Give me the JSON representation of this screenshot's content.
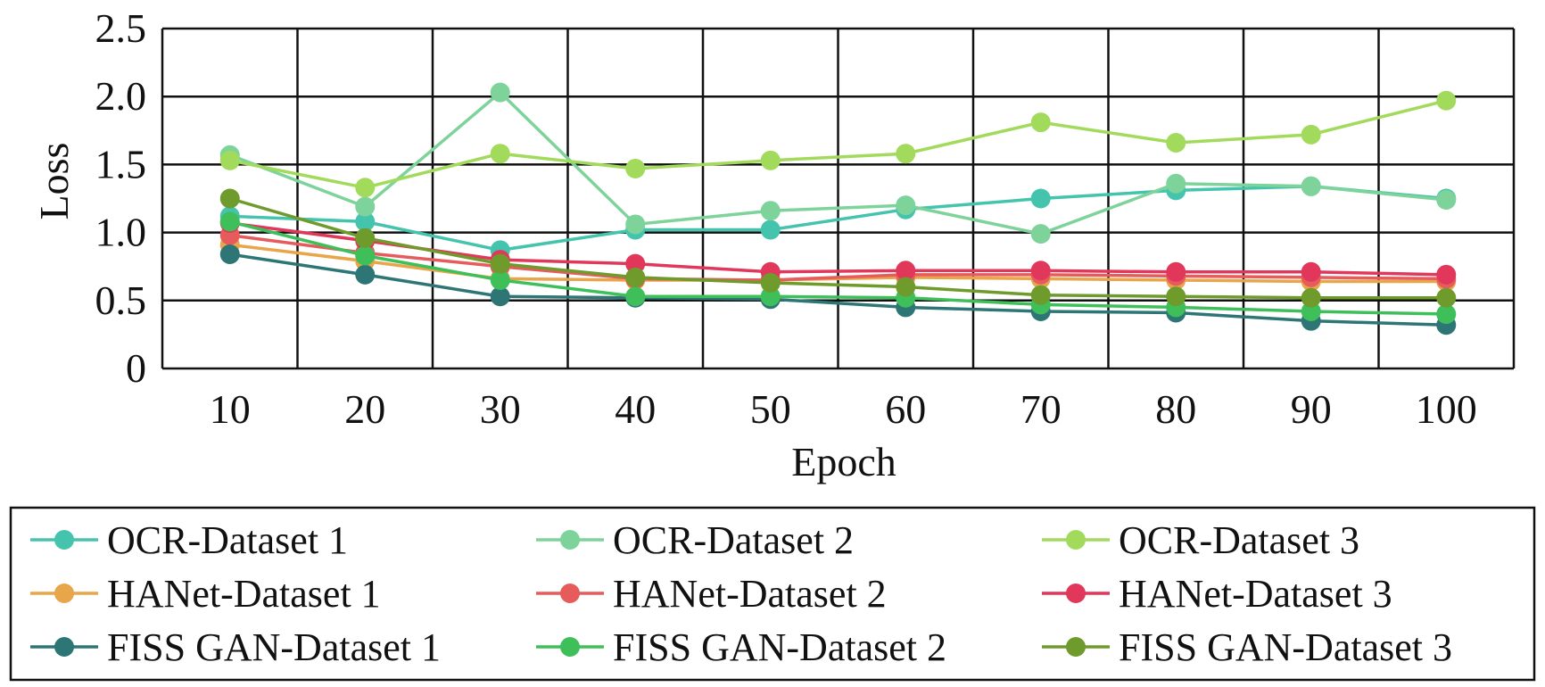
{
  "chart_data": {
    "type": "line",
    "title": "",
    "xlabel": "Epoch",
    "ylabel": "Loss",
    "x": [
      10,
      20,
      30,
      40,
      50,
      60,
      70,
      80,
      90,
      100
    ],
    "ylim": [
      0,
      2.5
    ],
    "yticks": [
      "0",
      "0.5",
      "1.0",
      "1.5",
      "2.0",
      "2.5"
    ],
    "grid": true,
    "legend_position": "bottom",
    "series": [
      {
        "name": "OCR-Dataset 1",
        "color": "#45c4ad",
        "values": [
          1.12,
          1.08,
          0.87,
          1.02,
          1.02,
          1.17,
          1.25,
          1.31,
          1.34,
          1.25
        ]
      },
      {
        "name": "OCR-Dataset 2",
        "color": "#7dd39a",
        "values": [
          1.57,
          1.19,
          2.03,
          1.06,
          1.16,
          1.2,
          0.99,
          1.36,
          1.34,
          1.24
        ]
      },
      {
        "name": "OCR-Dataset 3",
        "color": "#a2da5c",
        "values": [
          1.53,
          1.33,
          1.58,
          1.47,
          1.53,
          1.58,
          1.81,
          1.66,
          1.72,
          1.97
        ]
      },
      {
        "name": "HANet-Dataset 1",
        "color": "#e8a54a",
        "values": [
          0.91,
          0.79,
          0.66,
          0.65,
          0.65,
          0.67,
          0.66,
          0.65,
          0.64,
          0.64
        ]
      },
      {
        "name": "HANet-Dataset 2",
        "color": "#e65c5c",
        "values": [
          0.98,
          0.85,
          0.75,
          0.66,
          0.65,
          0.69,
          0.69,
          0.68,
          0.67,
          0.66
        ]
      },
      {
        "name": "HANet-Dataset 3",
        "color": "#e0375a",
        "values": [
          1.07,
          0.94,
          0.8,
          0.77,
          0.71,
          0.72,
          0.72,
          0.71,
          0.71,
          0.69
        ]
      },
      {
        "name": "FISS GAN-Dataset 1",
        "color": "#2e7576",
        "values": [
          0.84,
          0.69,
          0.53,
          0.52,
          0.51,
          0.45,
          0.42,
          0.41,
          0.35,
          0.32
        ]
      },
      {
        "name": "FISS GAN-Dataset 2",
        "color": "#3fbf5a",
        "values": [
          1.08,
          0.83,
          0.65,
          0.53,
          0.53,
          0.52,
          0.47,
          0.45,
          0.42,
          0.4
        ]
      },
      {
        "name": "FISS GAN-Dataset 3",
        "color": "#6e9b2b",
        "values": [
          1.25,
          0.96,
          0.77,
          0.67,
          0.63,
          0.6,
          0.54,
          0.53,
          0.52,
          0.52
        ]
      }
    ]
  }
}
